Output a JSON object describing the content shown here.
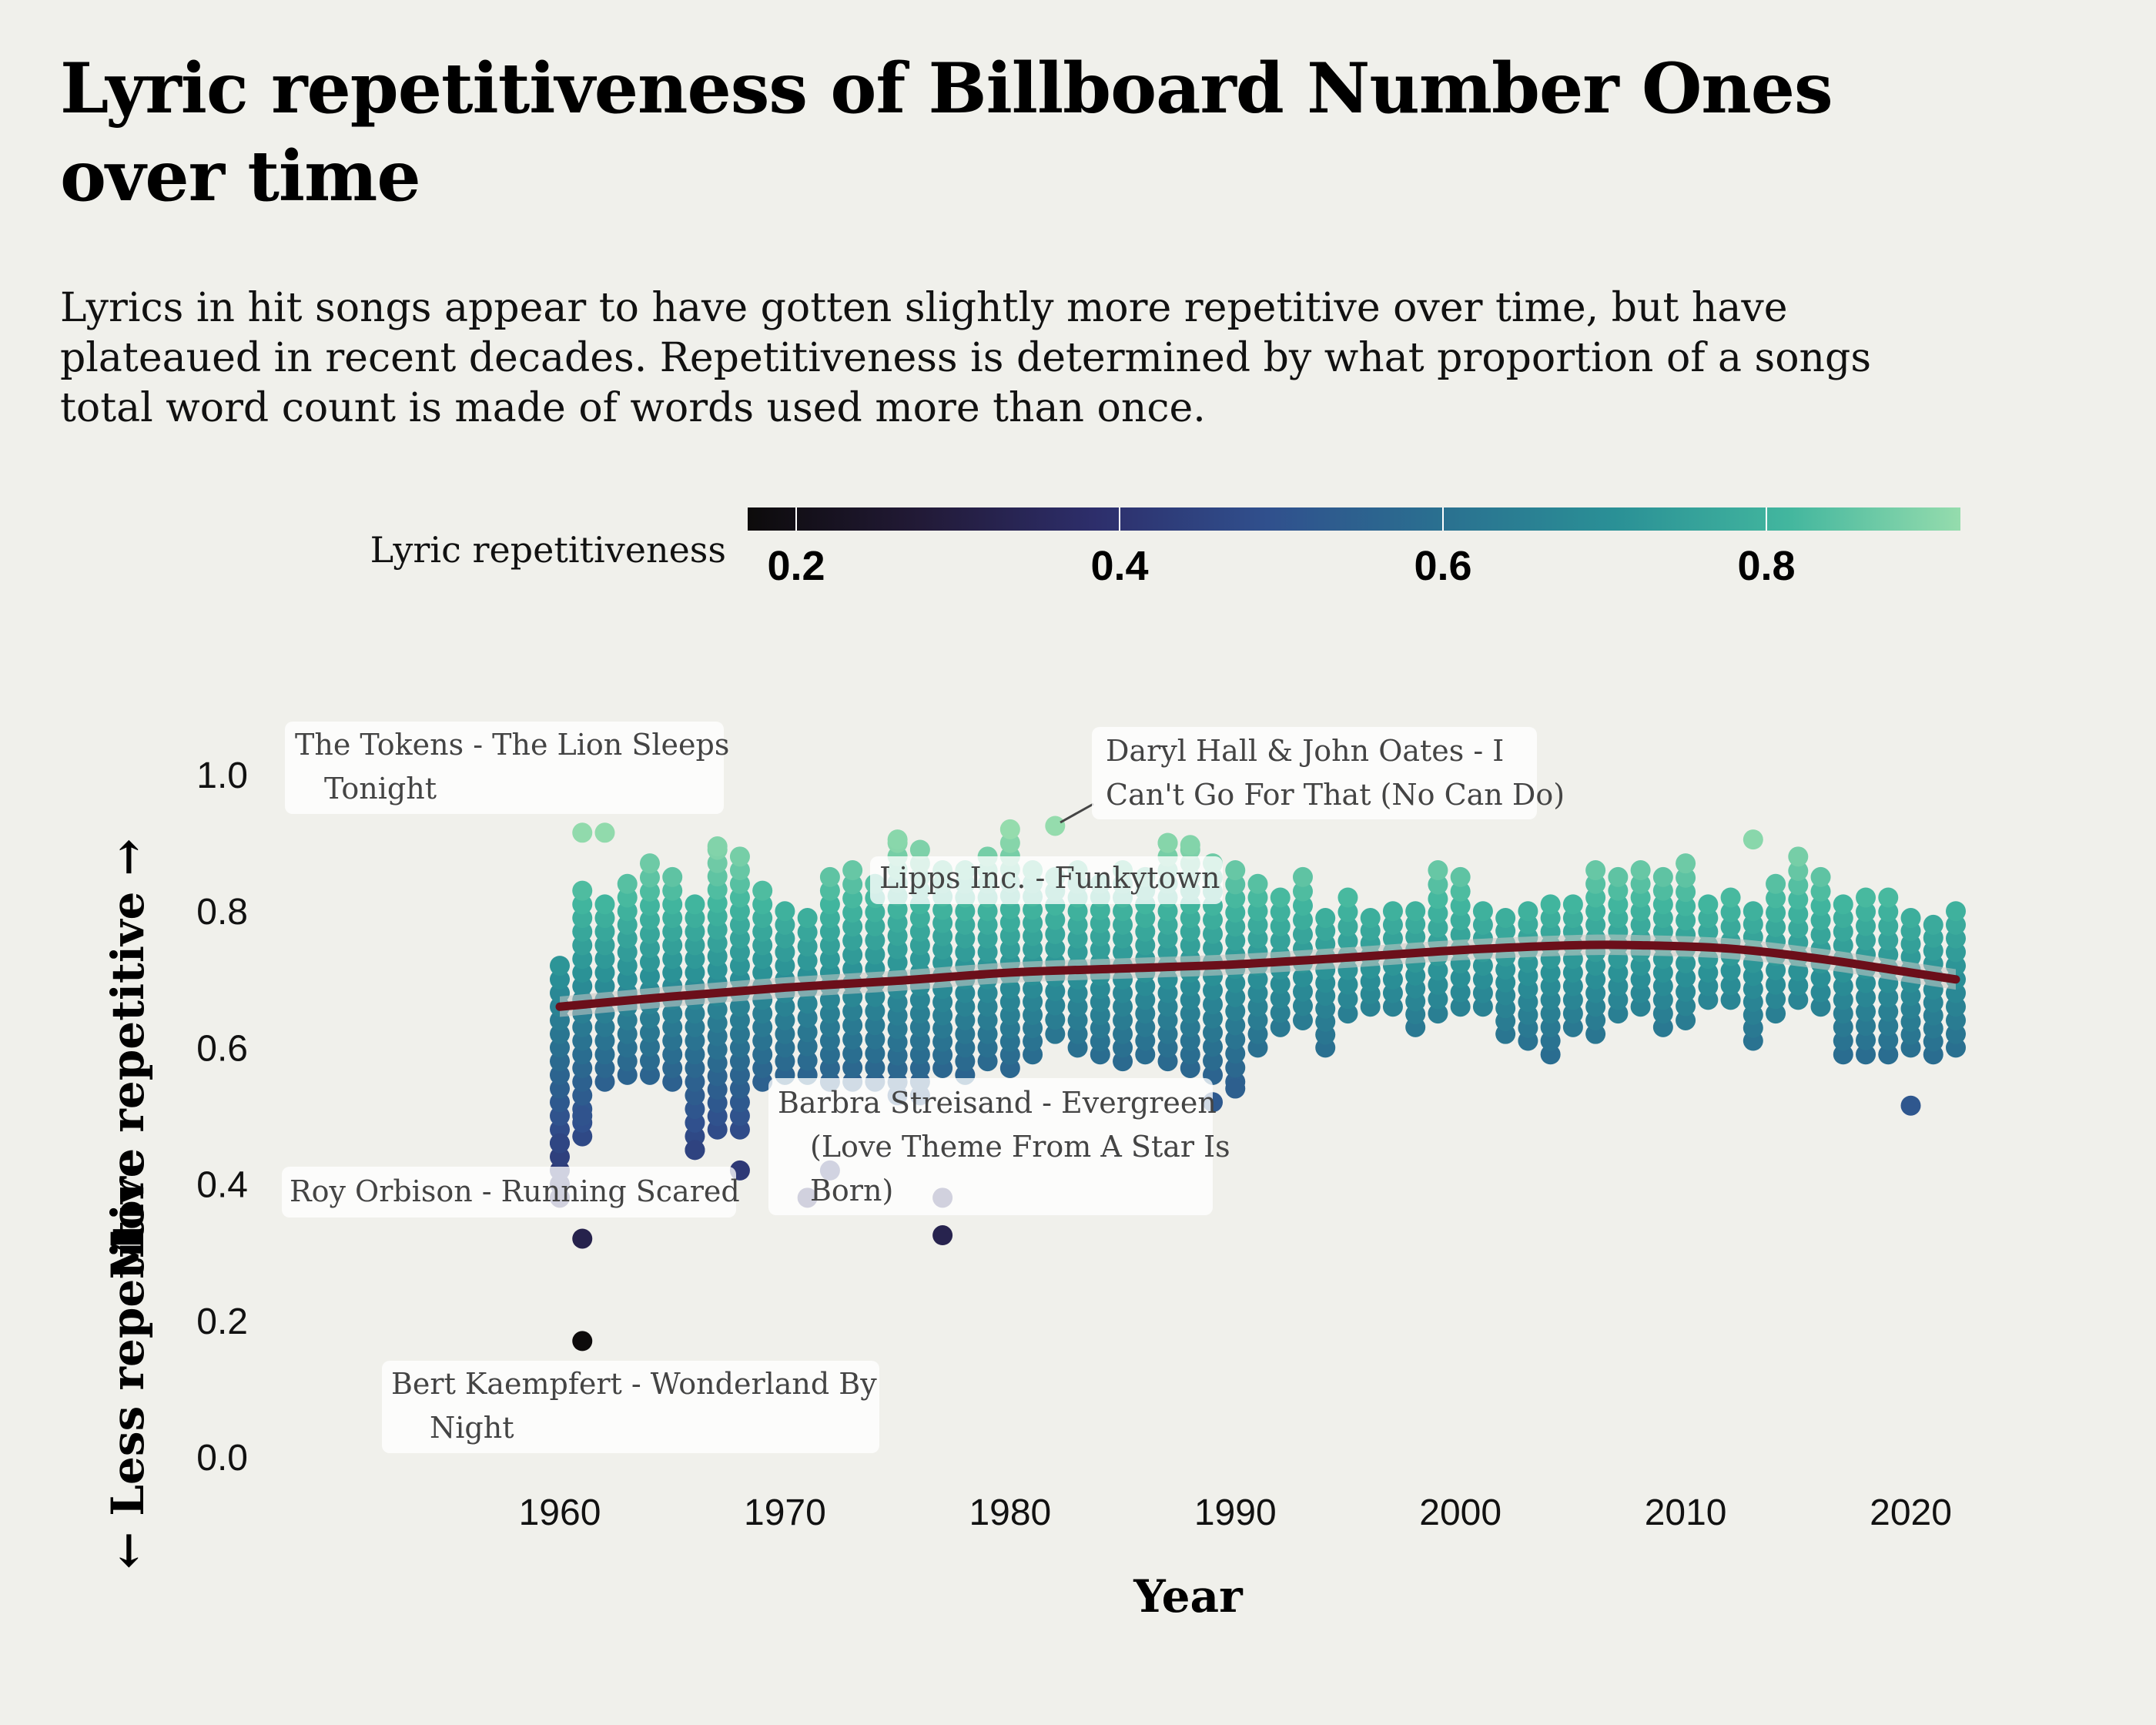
{
  "title": "Lyric repetitiveness of Billboard Number Ones over time",
  "subtitle": "Lyrics in hit songs appear to have gotten slightly more repetitive over time, but have plateaued in recent decades. Repetitiveness is determined by what proportion of a songs total word count is made of words used more than once.",
  "colors": {
    "background": "#f0f0eb",
    "trend_line": "#6b0f1a",
    "trend_band": "#c8c8c4",
    "scale": [
      "#0d0b0b",
      "#221a37",
      "#2d2e6b",
      "#30508d",
      "#2a7090",
      "#2a9096",
      "#42b69e",
      "#95dcad"
    ]
  },
  "chart_data": {
    "type": "scatter",
    "title": "Lyric repetitiveness of Billboard Number Ones over time",
    "xlabel": "Year",
    "ylabel_upper": "More repetitive →",
    "ylabel_lower": "← Less repetitive",
    "xlim": [
      1960,
      2022
    ],
    "ylim": [
      0.0,
      1.0
    ],
    "x_ticks": [
      1960,
      1970,
      1980,
      1990,
      2000,
      2010,
      2020
    ],
    "y_ticks": [
      "0.0",
      "0.2",
      "0.4",
      "0.6",
      "0.8",
      "1.0"
    ],
    "legend": {
      "label": "Lyric repetitiveness",
      "range": [
        0.17,
        0.92
      ],
      "ticks": [
        "0.2",
        "0.4",
        "0.6",
        "0.8"
      ]
    },
    "grid": false,
    "trend": {
      "x": [
        1960,
        1965,
        1970,
        1975,
        1980,
        1985,
        1990,
        1995,
        2000,
        2005,
        2008,
        2012,
        2016,
        2020,
        2022
      ],
      "y": [
        0.66,
        0.675,
        0.688,
        0.698,
        0.71,
        0.716,
        0.722,
        0.732,
        0.743,
        0.75,
        0.75,
        0.745,
        0.73,
        0.71,
        0.7
      ]
    },
    "year_ranges": [
      [
        1960,
        0.38,
        0.72
      ],
      [
        1961,
        0.47,
        0.83
      ],
      [
        1962,
        0.55,
        0.81
      ],
      [
        1963,
        0.56,
        0.84
      ],
      [
        1964,
        0.56,
        0.87
      ],
      [
        1965,
        0.55,
        0.85
      ],
      [
        1966,
        0.45,
        0.81
      ],
      [
        1967,
        0.48,
        0.89
      ],
      [
        1968,
        0.48,
        0.88
      ],
      [
        1969,
        0.55,
        0.83
      ],
      [
        1970,
        0.56,
        0.8
      ],
      [
        1971,
        0.56,
        0.79
      ],
      [
        1972,
        0.55,
        0.85
      ],
      [
        1973,
        0.55,
        0.86
      ],
      [
        1974,
        0.55,
        0.84
      ],
      [
        1975,
        0.53,
        0.9
      ],
      [
        1976,
        0.53,
        0.89
      ],
      [
        1977,
        0.57,
        0.86
      ],
      [
        1978,
        0.56,
        0.86
      ],
      [
        1979,
        0.58,
        0.88
      ],
      [
        1980,
        0.57,
        0.9
      ],
      [
        1981,
        0.59,
        0.86
      ],
      [
        1982,
        0.62,
        0.85
      ],
      [
        1983,
        0.6,
        0.86
      ],
      [
        1984,
        0.59,
        0.84
      ],
      [
        1985,
        0.58,
        0.86
      ],
      [
        1986,
        0.59,
        0.85
      ],
      [
        1987,
        0.58,
        0.9
      ],
      [
        1988,
        0.57,
        0.89
      ],
      [
        1989,
        0.56,
        0.87
      ],
      [
        1990,
        0.55,
        0.86
      ],
      [
        1991,
        0.6,
        0.84
      ],
      [
        1992,
        0.63,
        0.82
      ],
      [
        1993,
        0.64,
        0.85
      ],
      [
        1994,
        0.6,
        0.79
      ],
      [
        1995,
        0.65,
        0.82
      ],
      [
        1996,
        0.66,
        0.79
      ],
      [
        1997,
        0.66,
        0.8
      ],
      [
        1998,
        0.63,
        0.8
      ],
      [
        1999,
        0.65,
        0.86
      ],
      [
        2000,
        0.66,
        0.85
      ],
      [
        2001,
        0.66,
        0.8
      ],
      [
        2002,
        0.62,
        0.79
      ],
      [
        2003,
        0.61,
        0.8
      ],
      [
        2004,
        0.59,
        0.81
      ],
      [
        2005,
        0.63,
        0.81
      ],
      [
        2006,
        0.62,
        0.86
      ],
      [
        2007,
        0.65,
        0.85
      ],
      [
        2008,
        0.66,
        0.86
      ],
      [
        2009,
        0.63,
        0.85
      ],
      [
        2010,
        0.64,
        0.87
      ],
      [
        2011,
        0.67,
        0.81
      ],
      [
        2012,
        0.67,
        0.82
      ],
      [
        2013,
        0.61,
        0.8
      ],
      [
        2014,
        0.65,
        0.84
      ],
      [
        2015,
        0.67,
        0.88
      ],
      [
        2016,
        0.66,
        0.85
      ],
      [
        2017,
        0.59,
        0.81
      ],
      [
        2018,
        0.59,
        0.82
      ],
      [
        2019,
        0.59,
        0.82
      ],
      [
        2020,
        0.6,
        0.79
      ],
      [
        2021,
        0.59,
        0.78
      ],
      [
        2022,
        0.6,
        0.8
      ]
    ],
    "notable_points": [
      {
        "x": 1961,
        "y": 0.915
      },
      {
        "x": 1962,
        "y": 0.915
      },
      {
        "x": 1967,
        "y": 0.895
      },
      {
        "x": 1975,
        "y": 0.905
      },
      {
        "x": 1980,
        "y": 0.92
      },
      {
        "x": 1982,
        "y": 0.925
      },
      {
        "x": 1987,
        "y": 0.9
      },
      {
        "x": 1988,
        "y": 0.897
      },
      {
        "x": 2013,
        "y": 0.905
      },
      {
        "x": 1961,
        "y": 0.32
      },
      {
        "x": 1961,
        "y": 0.17
      },
      {
        "x": 1977,
        "y": 0.325
      },
      {
        "x": 1968,
        "y": 0.42
      },
      {
        "x": 1960,
        "y": 0.46
      },
      {
        "x": 1961,
        "y": 0.5
      },
      {
        "x": 1966,
        "y": 0.45
      },
      {
        "x": 1989,
        "y": 0.52
      },
      {
        "x": 1990,
        "y": 0.54
      },
      {
        "x": 2020,
        "y": 0.515
      },
      {
        "x": 1971,
        "y": 0.38
      },
      {
        "x": 1972,
        "y": 0.42
      },
      {
        "x": 1977,
        "y": 0.38
      }
    ],
    "annotations": [
      {
        "text": "The Tokens - The Lion Sleeps Tonight",
        "lines": [
          "The Tokens - The Lion Sleeps",
          "Tonight"
        ],
        "x": 1961,
        "y": 0.915
      },
      {
        "text": "Daryl Hall & John Oates - I Can't Go For That (No Can Do)",
        "lines": [
          "Daryl Hall & John Oates - I",
          "Can't Go For That (No Can Do)"
        ],
        "x": 1982,
        "y": 0.925
      },
      {
        "text": "Lipps Inc. - Funkytown",
        "lines": [
          "Lipps Inc. - Funkytown"
        ],
        "x": 1980,
        "y": 0.88
      },
      {
        "text": "Barbra Streisand - Evergreen (Love Theme From A Star Is Born)",
        "lines": [
          "Barbra Streisand - Evergreen",
          "(Love Theme From A Star Is",
          "Born)"
        ],
        "x": 1977,
        "y": 0.38
      },
      {
        "text": "Roy Orbison - Running Scared",
        "lines": [
          "Roy Orbison - Running Scared"
        ],
        "x": 1961,
        "y": 0.32
      },
      {
        "text": "Bert Kaempfert - Wonderland By Night",
        "lines": [
          "Bert Kaempfert - Wonderland By",
          "Night"
        ],
        "x": 1961,
        "y": 0.17
      }
    ]
  }
}
